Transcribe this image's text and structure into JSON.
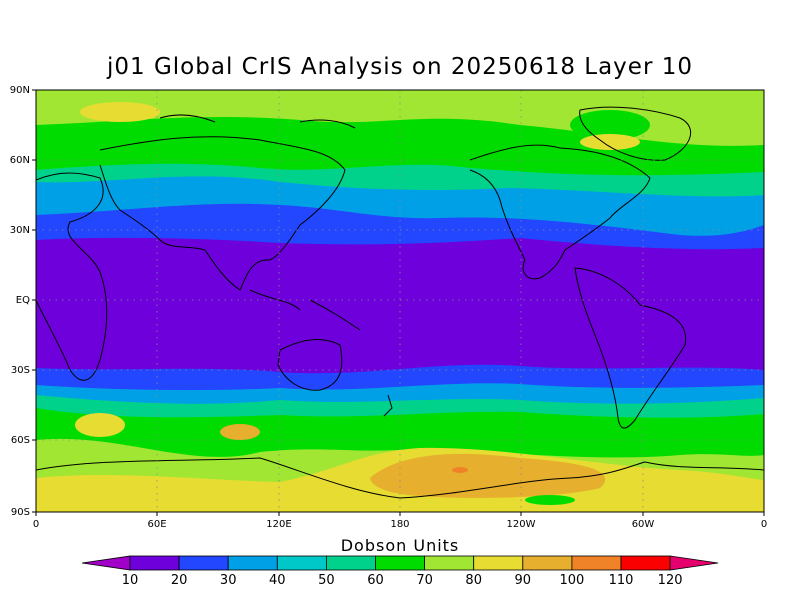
{
  "title": "j01 Global CrIS Analysis on 20250618 Layer 10",
  "colorbar": {
    "label": "Dobson Units",
    "ticks": [
      "10",
      "20",
      "30",
      "40",
      "50",
      "60",
      "70",
      "80",
      "90",
      "100",
      "110",
      "120"
    ],
    "colors": [
      "#a000c8",
      "#6e00dc",
      "#2346ff",
      "#00a0e6",
      "#00c8c8",
      "#00d28c",
      "#00dc00",
      "#a0e632",
      "#e6dc32",
      "#e6af2d",
      "#f08228",
      "#fa0000",
      "#e6006e"
    ]
  },
  "axes": {
    "y_ticks": [
      "90N",
      "60N",
      "30N",
      "EQ",
      "30S",
      "60S",
      "90S"
    ],
    "x_ticks": [
      "0",
      "60E",
      "120E",
      "180",
      "120W",
      "60W",
      "0"
    ]
  },
  "field_legend": {
    "c1": "#6e00dc",
    "c2": "#2346ff",
    "c3": "#00a0e6",
    "c4": "#00c8c8",
    "c5": "#00d28c",
    "c6": "#00dc00",
    "c7": "#a0e632",
    "c8": "#e6dc32",
    "c9": "#e6af2d",
    "c10": "#f08228",
    "c11": "#fa0000"
  }
}
